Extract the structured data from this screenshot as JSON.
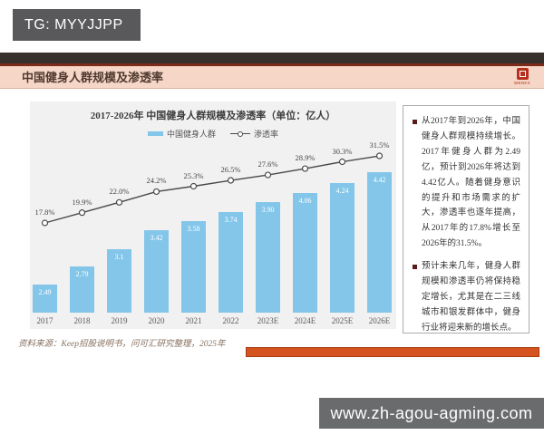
{
  "badge": {
    "text": "TG: MYYJJPP"
  },
  "header": {
    "title": "中国健身人群规模及渗透率",
    "logo_text": "WENKX"
  },
  "chart_data": {
    "type": "bar",
    "title": "2017-2026年 中国健身人群规模及渗透率（单位：亿人）",
    "legend": [
      "中国健身人群",
      "渗透率"
    ],
    "legend_position": "top",
    "grid": false,
    "categories": [
      "2017",
      "2018",
      "2019",
      "2020",
      "2021",
      "2022",
      "2023E",
      "2024E",
      "2025E",
      "2026E"
    ],
    "series": [
      {
        "name": "中国健身人群",
        "type": "bar",
        "unit": "亿人",
        "values": [
          2.49,
          2.79,
          3.1,
          3.42,
          3.58,
          3.74,
          3.9,
          4.06,
          4.24,
          4.42
        ],
        "labels": [
          "2.49",
          "2.79",
          "3.1",
          "3.42",
          "3.58",
          "3.74",
          "3.90",
          "4.06",
          "4.24",
          "4.42"
        ]
      },
      {
        "name": "渗透率",
        "type": "line",
        "unit": "%",
        "values": [
          17.8,
          19.9,
          22.0,
          24.2,
          25.3,
          26.5,
          27.6,
          28.9,
          30.3,
          31.5
        ],
        "labels": [
          "17.8%",
          "19.9%",
          "22.0%",
          "24.2%",
          "25.3%",
          "26.5%",
          "27.6%",
          "28.9%",
          "30.3%",
          "31.5%"
        ]
      }
    ]
  },
  "source": {
    "text": "资料来源：Keep招股说明书，问可汇研究整理，2025年"
  },
  "notes": {
    "bullets": [
      "从2017年到2026年，中国健身人群规模持续增长。2017年健身人群为2.49亿，预计到2026年将达到4.42亿人。随着健身意识的提升和市场需求的扩大，渗透率也逐年提高，从2017年的17.8%增长至2026年的31.5%。",
      "预计未来几年，健身人群规模和渗透率仍将保持稳定增长，尤其是在二三线城市和银发群体中，健身行业将迎来新的增长点。"
    ]
  },
  "watermark": {
    "text": "www.zh-agou-agming.com"
  },
  "colors": {
    "badge_bg": "#59595b",
    "topbar_bg": "#37312d",
    "rule_red": "#7c2a19",
    "header_bg": "#f5d6c7",
    "header_text": "#4f392e",
    "logo_red": "#b5301e",
    "panel_bg": "#f1f1f1",
    "bar_fill": "#84c6e9",
    "line_color": "#4a4a4a",
    "notes_border": "#ababab",
    "bullet_color": "#5a1a1a",
    "orange_bar": "#d4531f",
    "watermark_bg": "#6a6b6d",
    "source_text": "#86705f"
  }
}
